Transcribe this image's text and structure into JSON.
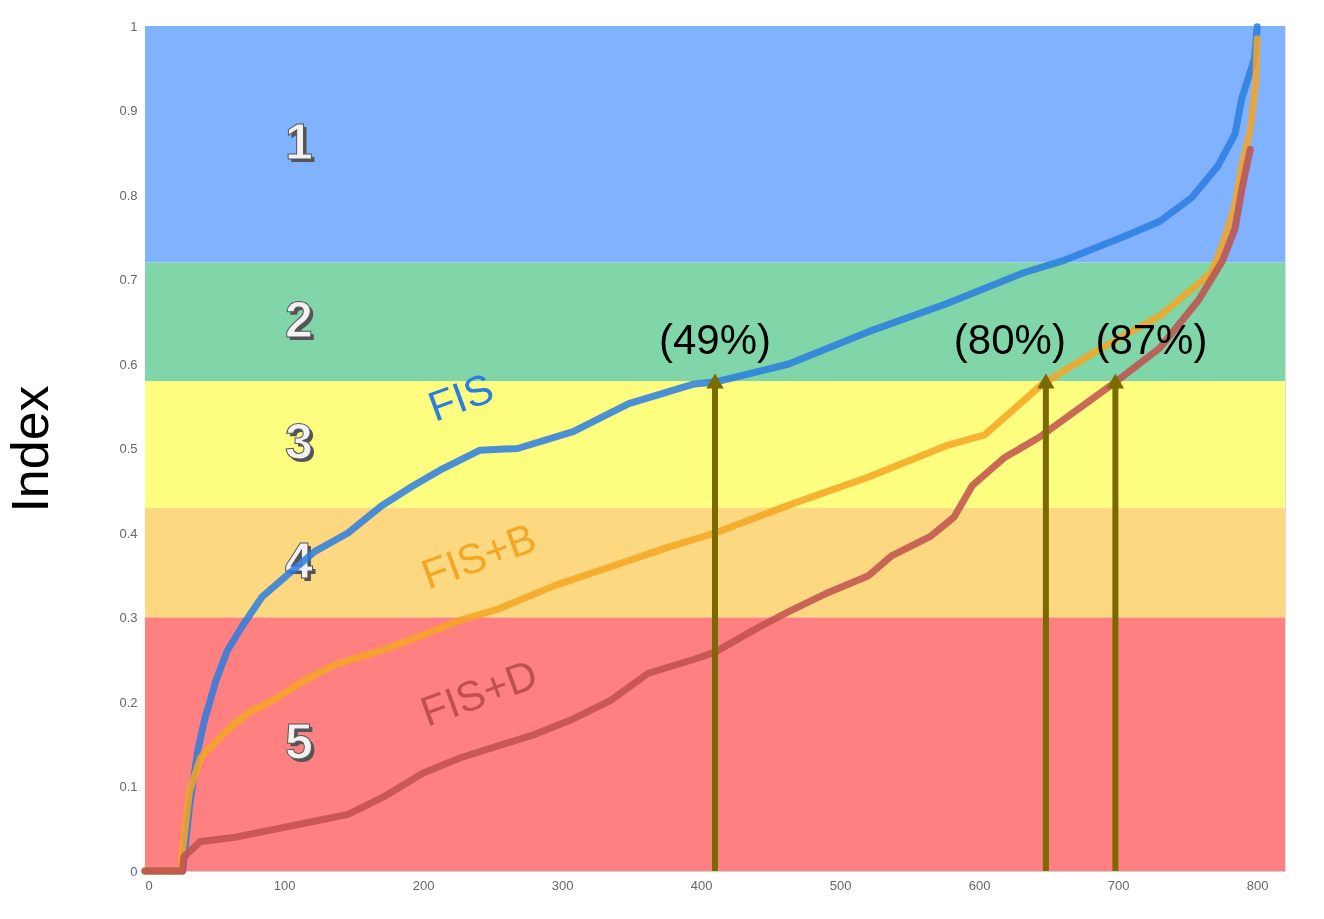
{
  "chart_data": {
    "type": "line",
    "ylabel": "Index",
    "xlim": [
      0,
      820
    ],
    "xticks": [
      0,
      100,
      200,
      300,
      400,
      500,
      600,
      700,
      800
    ],
    "ylim": [
      0,
      1
    ],
    "yticks": [
      0,
      0.1,
      0.2,
      0.3,
      0.4,
      0.5,
      0.6,
      0.7,
      0.8,
      0.9,
      1
    ],
    "grid": false,
    "bands": [
      {
        "axis": "y",
        "from": 0.72,
        "to": 1,
        "label": "1",
        "color": "#80b2ff"
      },
      {
        "axis": "y",
        "from": 0.58,
        "to": 0.72,
        "label": "2",
        "color": "#80d6a8"
      },
      {
        "axis": "y",
        "from": 0.43,
        "to": 0.58,
        "label": "3",
        "color": "#fdfd80"
      },
      {
        "axis": "y",
        "from": 0.3,
        "to": 0.43,
        "label": "4",
        "color": "#fcd980"
      },
      {
        "axis": "y",
        "from": 0,
        "to": 0.3,
        "label": "5",
        "color": "#ff8080"
      }
    ],
    "series": [
      {
        "name": "FIS",
        "color": "#2a7de1",
        "x": [
          0,
          27,
          32,
          38,
          43,
          51,
          59,
          70,
          84,
          100,
          122,
          146,
          170,
          192,
          214,
          241,
          268,
          308,
          348,
          394,
          411,
          463,
          520,
          576,
          632,
          660,
          703,
          730,
          753,
          772,
          784,
          789,
          798,
          800
        ],
        "values": [
          0,
          0,
          0.076,
          0.143,
          0.18,
          0.225,
          0.26,
          0.29,
          0.324,
          0.347,
          0.378,
          0.4,
          0.432,
          0.455,
          0.476,
          0.498,
          0.5,
          0.52,
          0.553,
          0.576,
          0.579,
          0.6,
          0.638,
          0.671,
          0.708,
          0.722,
          0.75,
          0.769,
          0.797,
          0.835,
          0.872,
          0.915,
          0.961,
          0.999
        ]
      },
      {
        "name": "FIS+B",
        "color": "#f5a623",
        "x": [
          0,
          26,
          27,
          32,
          40,
          51,
          62,
          76,
          92,
          114,
          138,
          170,
          200,
          227,
          254,
          295,
          335,
          376,
          410,
          463,
          520,
          576,
          604,
          646,
          688,
          730,
          767,
          775,
          784,
          789,
          795,
          799,
          800
        ],
        "values": [
          0,
          0,
          0.026,
          0.094,
          0.134,
          0.153,
          0.171,
          0.189,
          0.202,
          0.225,
          0.245,
          0.261,
          0.279,
          0.297,
          0.31,
          0.338,
          0.36,
          0.383,
          0.4,
          0.433,
          0.466,
          0.503,
          0.516,
          0.577,
          0.619,
          0.657,
          0.708,
          0.741,
          0.788,
          0.835,
          0.877,
          0.933,
          0.985
        ]
      },
      {
        "name": "FIS+D",
        "color": "#c0504d",
        "x": [
          0,
          27,
          28,
          40,
          65,
          92,
          119,
          146,
          173,
          200,
          227,
          254,
          281,
          308,
          335,
          362,
          394,
          410,
          441,
          463,
          492,
          520,
          537,
          565,
          582,
          595,
          618,
          643,
          700,
          730,
          758,
          775,
          784,
          789,
          795
        ],
        "values": [
          0,
          0,
          0.017,
          0.035,
          0.04,
          0.049,
          0.058,
          0.067,
          0.089,
          0.116,
          0.134,
          0.148,
          0.162,
          0.18,
          0.202,
          0.234,
          0.25,
          0.259,
          0.288,
          0.307,
          0.33,
          0.349,
          0.373,
          0.396,
          0.419,
          0.456,
          0.489,
          0.513,
          0.581,
          0.619,
          0.676,
          0.722,
          0.76,
          0.807,
          0.854
        ]
      }
    ],
    "annotations": [
      {
        "text": "(49%)",
        "x": 410,
        "y": 0.58
      },
      {
        "text": "(80%)",
        "x": 648,
        "y": 0.58
      },
      {
        "text": "(87%)",
        "x": 698,
        "y": 0.58
      }
    ]
  }
}
